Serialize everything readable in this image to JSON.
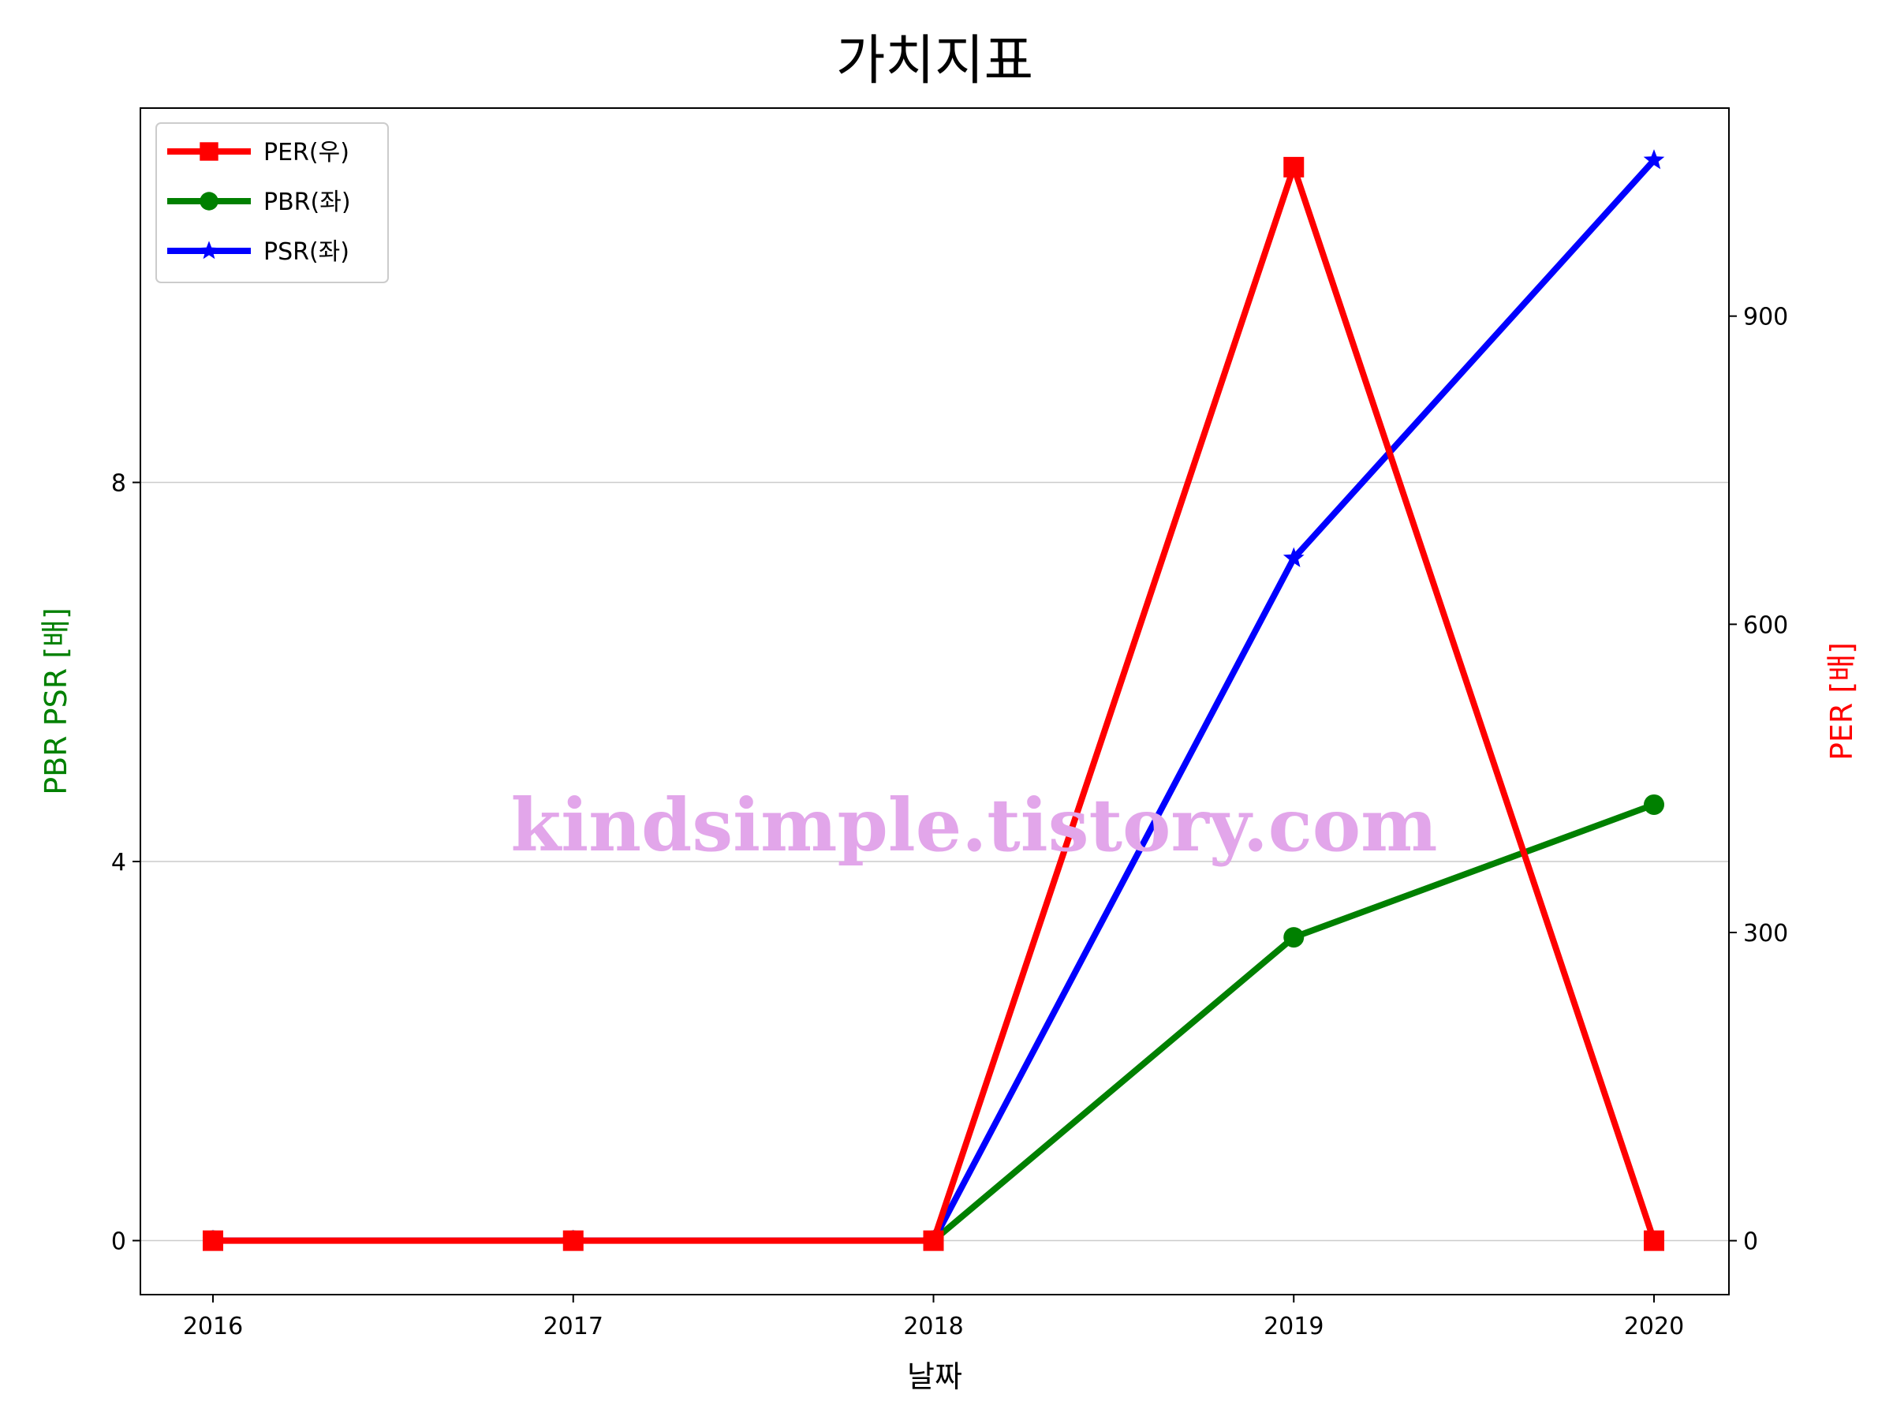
{
  "chart_data": {
    "type": "line",
    "title": "가치지표",
    "xlabel": "날짜",
    "ylabel_left": "PBR PSR [배]",
    "ylabel_right": "PER [배]",
    "categories": [
      "2016",
      "2017",
      "2018",
      "2019",
      "2020"
    ],
    "y_left": {
      "lim": [
        -0.57,
        11.95
      ],
      "ticks": [
        0,
        4,
        8
      ],
      "tick_labels": [
        "0",
        "4",
        "8"
      ]
    },
    "y_right": {
      "lim": [
        -52.5,
        1102.5
      ],
      "ticks": [
        0,
        300,
        600,
        900
      ],
      "tick_labels": [
        "0",
        "300",
        "600",
        "900"
      ]
    },
    "grid": "horizontal-left",
    "legend_position": "top-left",
    "series": [
      {
        "name": "PER(우)",
        "axis": "right",
        "color": "#ff0000",
        "marker": "square",
        "values": [
          0,
          0,
          0,
          1045,
          0
        ]
      },
      {
        "name": "PBR(좌)",
        "axis": "left",
        "color": "#008000",
        "marker": "circle",
        "values": [
          0,
          0,
          0,
          3.2,
          4.6
        ]
      },
      {
        "name": "PSR(좌)",
        "axis": "left",
        "color": "#0000ff",
        "marker": "star",
        "values": [
          0,
          0,
          0,
          7.2,
          11.4
        ]
      }
    ],
    "axis_label_colors": {
      "left": "#008000",
      "right": "#ff0000"
    }
  },
  "watermark": "kindsimple.tistory.com"
}
